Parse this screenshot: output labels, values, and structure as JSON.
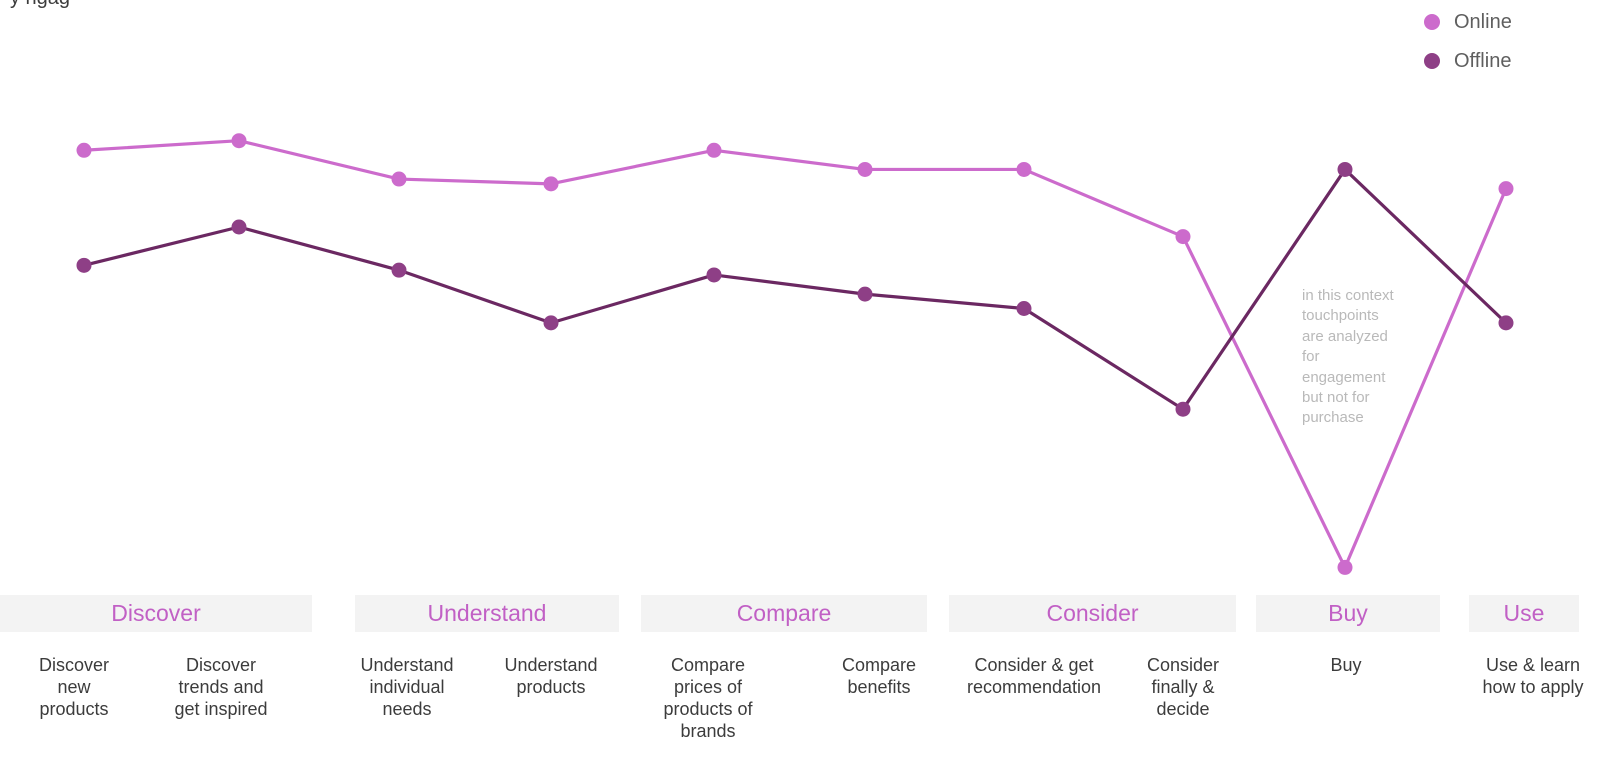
{
  "partial_title": "y     ngag",
  "chart_data": {
    "type": "line",
    "categories": [
      "Discover new products",
      "Discover trends and get inspired",
      "Understand individual needs",
      "Understand products",
      "Compare prices of products of brands",
      "Compare benefits",
      "Consider & get recommendation",
      "Consider finally & decide",
      "Buy",
      "Use & learn how to apply"
    ],
    "series": [
      {
        "name": "Online",
        "color": "#cc6bcc",
        "values": [
          87,
          89,
          81,
          80,
          87,
          83,
          83,
          69,
          0,
          79
        ]
      },
      {
        "name": "Offline",
        "color": "#6b2862",
        "values": [
          63,
          71,
          62,
          51,
          61,
          57,
          54,
          33,
          83,
          51
        ]
      }
    ],
    "ylim": [
      -2,
      110
    ],
    "grid": false,
    "legend_position": "top-right",
    "annotation": "in this context touchpoints are analyzed for engagement but not for purchase"
  },
  "legend": {
    "online": {
      "label": "Online",
      "color": "#cc6bcc"
    },
    "offline": {
      "label": "Offline",
      "color": "#8e3f86"
    }
  },
  "stages": [
    {
      "name": "Discover"
    },
    {
      "name": "Understand"
    },
    {
      "name": "Compare"
    },
    {
      "name": "Consider"
    },
    {
      "name": "Buy"
    },
    {
      "name": "Use"
    }
  ],
  "touchpoints": [
    {
      "lines": [
        "Discover",
        "new",
        "products"
      ]
    },
    {
      "lines": [
        "Discover",
        "trends and",
        "get inspired"
      ]
    },
    {
      "lines": [
        "Understand",
        "individual",
        "needs"
      ]
    },
    {
      "lines": [
        "Understand",
        "products"
      ]
    },
    {
      "lines": [
        "Compare",
        "prices of",
        "products of",
        "brands"
      ]
    },
    {
      "lines": [
        "Compare",
        "benefits"
      ]
    },
    {
      "lines": [
        "Consider & get",
        "recommendation"
      ]
    },
    {
      "lines": [
        "Consider",
        "finally &",
        "decide"
      ]
    },
    {
      "lines": [
        "Buy"
      ]
    },
    {
      "lines": [
        "Use & learn",
        "how to apply"
      ]
    }
  ],
  "annotation_lines": [
    "in this context",
    "touchpoints",
    "are analyzed",
    "for",
    "engagement",
    "but not for",
    "purchase"
  ]
}
